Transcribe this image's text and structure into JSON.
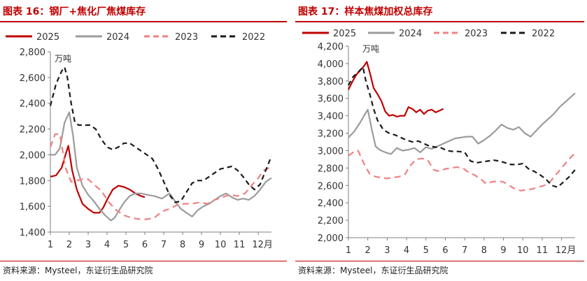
{
  "chart_data": [
    {
      "type": "line",
      "figure_label": "图表 16：钢厂+焦化厂焦煤库存",
      "source": "资料来源：Mysteel，东证衍生品研究院",
      "unit": "万吨",
      "x_ticks": [
        "1",
        "2",
        "3",
        "4",
        "5",
        "6",
        "7",
        "8",
        "9",
        "10",
        "11",
        "12月"
      ],
      "xlim": [
        1,
        12.7
      ],
      "ylim": [
        1400,
        2800
      ],
      "y_ticks": [
        "1,400",
        "1,600",
        "1,800",
        "2,000",
        "2,200",
        "2,400",
        "2,600",
        "2,800"
      ],
      "legend_position": "top",
      "series": [
        {
          "name": "2025",
          "color": "#c00000",
          "dash": "solid",
          "x": [
            1,
            1.3,
            1.6,
            1.8,
            1.95,
            2.15,
            2.4,
            2.7,
            3.0,
            3.3,
            3.6,
            3.8,
            4.0,
            4.3,
            4.6,
            4.9,
            5.2,
            5.5,
            5.8,
            6.0
          ],
          "y": [
            1830,
            1840,
            1900,
            2000,
            2070,
            1880,
            1730,
            1620,
            1580,
            1550,
            1550,
            1590,
            1650,
            1730,
            1760,
            1750,
            1730,
            1700,
            1680,
            1670
          ]
        },
        {
          "name": "2024",
          "color": "#9b9b9b",
          "dash": "solid",
          "x": [
            1,
            1.25,
            1.5,
            1.75,
            2.0,
            2.2,
            2.4,
            2.7,
            3.0,
            3.3,
            3.6,
            3.9,
            4.2,
            4.4,
            4.6,
            4.9,
            5.2,
            5.5,
            5.8,
            6.1,
            6.5,
            6.9,
            7.3,
            7.6,
            7.9,
            8.2,
            8.5,
            8.8,
            9.1,
            9.4,
            9.7,
            10.0,
            10.3,
            10.6,
            10.9,
            11.2,
            11.5,
            11.8,
            12.1,
            12.4,
            12.7
          ],
          "y": [
            2000,
            2000,
            2050,
            2250,
            2330,
            2150,
            1900,
            1760,
            1690,
            1640,
            1580,
            1530,
            1490,
            1510,
            1560,
            1630,
            1680,
            1700,
            1700,
            1690,
            1680,
            1660,
            1700,
            1640,
            1580,
            1550,
            1520,
            1570,
            1600,
            1620,
            1650,
            1680,
            1700,
            1670,
            1650,
            1660,
            1650,
            1680,
            1730,
            1790,
            1820
          ]
        },
        {
          "name": "2023",
          "color": "#f08080",
          "dash": "dashed",
          "x": [
            1,
            1.25,
            1.5,
            1.8,
            2.1,
            2.4,
            2.7,
            3.0,
            3.3,
            3.7,
            4.1,
            4.5,
            4.9,
            5.3,
            5.7,
            6.1,
            6.5,
            6.9,
            7.3,
            7.7,
            8.1,
            8.5,
            8.9,
            9.3,
            9.7,
            10.1,
            10.5,
            10.9,
            11.3,
            11.7,
            12.0,
            12.3,
            12.6
          ],
          "y": [
            2060,
            2160,
            2160,
            1900,
            1790,
            1800,
            1810,
            1810,
            1770,
            1720,
            1630,
            1570,
            1530,
            1510,
            1500,
            1500,
            1510,
            1560,
            1580,
            1610,
            1620,
            1620,
            1630,
            1620,
            1650,
            1670,
            1690,
            1680,
            1700,
            1770,
            1820,
            1880,
            1900
          ]
        },
        {
          "name": "2022",
          "color": "#1a1a1a",
          "dash": "dashed",
          "x": [
            1,
            1.3,
            1.6,
            1.75,
            1.9,
            2.1,
            2.3,
            2.5,
            2.8,
            3.1,
            3.4,
            3.7,
            4.0,
            4.3,
            4.6,
            4.9,
            5.2,
            5.5,
            5.8,
            6.1,
            6.4,
            6.7,
            7.0,
            7.3,
            7.6,
            7.9,
            8.2,
            8.5,
            8.8,
            9.1,
            9.4,
            9.7,
            10.0,
            10.3,
            10.6,
            10.9,
            11.2,
            11.5,
            11.8,
            12.1,
            12.4,
            12.7
          ],
          "y": [
            2380,
            2550,
            2650,
            2680,
            2600,
            2400,
            2250,
            2230,
            2230,
            2230,
            2200,
            2120,
            2060,
            2040,
            2060,
            2090,
            2090,
            2060,
            2030,
            2000,
            1970,
            1890,
            1790,
            1690,
            1630,
            1640,
            1710,
            1780,
            1800,
            1800,
            1830,
            1860,
            1890,
            1900,
            1910,
            1880,
            1830,
            1770,
            1730,
            1770,
            1880,
            1990
          ]
        }
      ]
    },
    {
      "type": "line",
      "figure_label": "图表 17：样本焦煤加权总库存",
      "source": "资料来源：Mysteel，东证衍生品研究院",
      "unit": "万吨",
      "x_ticks": [
        "1",
        "2",
        "3",
        "4",
        "5",
        "6",
        "7",
        "8",
        "9",
        "10",
        "11",
        "12月"
      ],
      "xlim": [
        1,
        12.7
      ],
      "ylim": [
        2000,
        4200
      ],
      "y_ticks": [
        "2,000",
        "2,200",
        "2,400",
        "2,600",
        "2,800",
        "3,000",
        "3,200",
        "3,400",
        "3,600",
        "3,800",
        "4,000",
        "4,200"
      ],
      "legend_position": "top",
      "series": [
        {
          "name": "2025",
          "color": "#c00000",
          "dash": "solid",
          "x": [
            1,
            1.2,
            1.4,
            1.6,
            1.8,
            1.95,
            2.1,
            2.3,
            2.5,
            2.7,
            2.9,
            3.1,
            3.3,
            3.5,
            3.7,
            3.9,
            4.1,
            4.3,
            4.5,
            4.7,
            4.9,
            5.1,
            5.3,
            5.5,
            5.7,
            5.9
          ],
          "y": [
            3700,
            3790,
            3870,
            3920,
            3970,
            4020,
            3900,
            3720,
            3650,
            3570,
            3450,
            3400,
            3410,
            3390,
            3400,
            3400,
            3500,
            3480,
            3440,
            3470,
            3420,
            3460,
            3470,
            3440,
            3460,
            3480
          ]
        },
        {
          "name": "2024",
          "color": "#9b9b9b",
          "dash": "solid",
          "x": [
            1,
            1.3,
            1.6,
            1.8,
            2.0,
            2.2,
            2.4,
            2.6,
            2.9,
            3.2,
            3.5,
            3.8,
            4.1,
            4.4,
            4.7,
            5.0,
            5.3,
            5.6,
            5.9,
            6.2,
            6.5,
            6.8,
            7.1,
            7.4,
            7.7,
            8.0,
            8.3,
            8.6,
            8.9,
            9.2,
            9.5,
            9.8,
            10.1,
            10.4,
            10.7,
            11.0,
            11.3,
            11.6,
            11.9,
            12.2,
            12.5,
            12.7
          ],
          "y": [
            3150,
            3220,
            3320,
            3400,
            3470,
            3250,
            3050,
            3010,
            2980,
            2960,
            3030,
            3000,
            3010,
            3030,
            2980,
            3040,
            3020,
            3050,
            3080,
            3110,
            3140,
            3150,
            3160,
            3160,
            3080,
            3120,
            3170,
            3230,
            3300,
            3260,
            3240,
            3270,
            3200,
            3160,
            3230,
            3300,
            3360,
            3420,
            3500,
            3560,
            3620,
            3660
          ]
        },
        {
          "name": "2023",
          "color": "#f08080",
          "dash": "dashed",
          "x": [
            1,
            1.3,
            1.5,
            1.8,
            2.1,
            2.4,
            2.7,
            3.0,
            3.3,
            3.6,
            3.9,
            4.2,
            4.5,
            4.8,
            5.1,
            5.4,
            5.7,
            6.0,
            6.3,
            6.6,
            6.9,
            7.2,
            7.5,
            7.8,
            8.1,
            8.4,
            8.7,
            9.0,
            9.3,
            9.6,
            9.9,
            10.2,
            10.5,
            10.8,
            11.1,
            11.4,
            11.7,
            12.0,
            12.3,
            12.6,
            12.7
          ],
          "y": [
            2940,
            2990,
            3000,
            2850,
            2730,
            2700,
            2690,
            2680,
            2690,
            2700,
            2720,
            2830,
            2900,
            2910,
            2890,
            2780,
            2760,
            2790,
            2800,
            2810,
            2800,
            2750,
            2720,
            2680,
            2620,
            2640,
            2650,
            2640,
            2600,
            2560,
            2540,
            2550,
            2560,
            2580,
            2600,
            2640,
            2720,
            2800,
            2880,
            2950,
            2980
          ]
        },
        {
          "name": "2022",
          "color": "#1a1a1a",
          "dash": "dashed",
          "x": [
            1,
            1.25,
            1.5,
            1.75,
            1.9,
            2.1,
            2.3,
            2.5,
            2.8,
            3.1,
            3.4,
            3.7,
            4.0,
            4.3,
            4.6,
            4.9,
            5.2,
            5.5,
            5.8,
            6.1,
            6.4,
            6.7,
            7.0,
            7.3,
            7.6,
            7.9,
            8.2,
            8.5,
            8.8,
            9.1,
            9.4,
            9.7,
            10.0,
            10.3,
            10.6,
            10.9,
            11.2,
            11.5,
            11.8,
            12.1,
            12.4,
            12.7
          ],
          "y": [
            3750,
            3850,
            3900,
            3960,
            3800,
            3650,
            3480,
            3350,
            3240,
            3200,
            3180,
            3150,
            3120,
            3100,
            3110,
            3080,
            3050,
            3040,
            3030,
            3000,
            2990,
            2990,
            2980,
            2880,
            2860,
            2870,
            2880,
            2890,
            2880,
            2860,
            2840,
            2840,
            2850,
            2790,
            2760,
            2720,
            2670,
            2600,
            2580,
            2640,
            2700,
            2780
          ]
        }
      ]
    }
  ]
}
